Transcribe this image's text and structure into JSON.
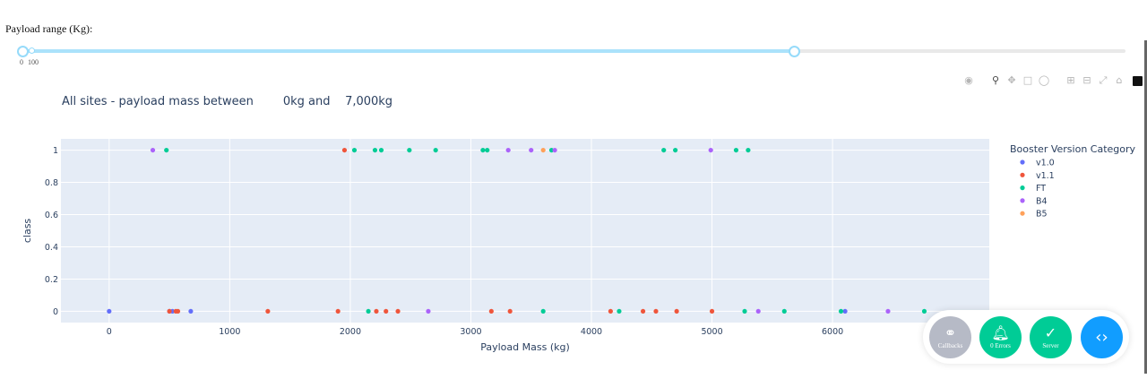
{
  "slider": {
    "label": "Payload range (Kg):",
    "marks": [
      "0",
      "100"
    ],
    "min": 0,
    "max": 10000,
    "value": [
      0,
      7000
    ]
  },
  "title": {
    "prefix": "All sites - payload mass between",
    "low": "0kg and",
    "high": "7,000kg"
  },
  "modebar": {
    "icons": [
      "camera-icon",
      "zoom-icon",
      "pan-icon",
      "box-select-icon",
      "lasso-icon",
      "zoom-in-icon",
      "zoom-out-icon",
      "autoscale-icon",
      "home-icon",
      "plotly-logo-icon"
    ]
  },
  "devtools": {
    "callbacks_label": "Callbacks",
    "errors_label": "0 Errors",
    "server_label": "Server"
  },
  "chart_data": {
    "type": "scatter",
    "title": "",
    "xlabel": "Payload Mass (kg)",
    "ylabel": "class",
    "xlim": [
      -400,
      7300
    ],
    "ylim": [
      -0.07,
      1.07
    ],
    "x_ticks": [
      0,
      1000,
      2000,
      3000,
      4000,
      5000,
      6000
    ],
    "y_ticks": [
      0,
      0.2,
      0.4,
      0.6,
      0.8,
      1
    ],
    "y_tick_labels": [
      "0",
      "0.2",
      "0.4",
      "0.6",
      "0.8",
      "1"
    ],
    "grid": true,
    "legend_title": "Booster Version Category",
    "legend_position": "right",
    "series": [
      {
        "name": "v1.0",
        "color": "#636efa",
        "x": [
          0,
          525,
          677,
          500,
          6104
        ],
        "y": [
          0,
          0,
          0,
          0,
          0
        ]
      },
      {
        "name": "v1.1",
        "color": "#ef553b",
        "x": [
          1952,
          500,
          553,
          570,
          1316,
          1898,
          2216,
          2296,
          2395,
          3170,
          3325,
          4159,
          4428,
          4535,
          4707,
          5000
        ],
        "y": [
          1,
          0,
          0,
          0,
          0,
          0,
          0,
          0,
          0,
          0,
          0,
          0,
          0,
          0,
          0,
          0
        ]
      },
      {
        "name": "FT",
        "color": "#00cc96",
        "x": [
          475,
          2034,
          2205,
          2257,
          2490,
          2708,
          3100,
          3136,
          3669,
          4600,
          4696,
          5200,
          5300,
          2150,
          3600,
          4230,
          5271,
          5600,
          6070,
          6761
        ],
        "y": [
          1,
          1,
          1,
          1,
          1,
          1,
          1,
          1,
          1,
          1,
          1,
          1,
          1,
          0,
          0,
          0,
          0,
          0,
          0,
          0
        ]
      },
      {
        "name": "B4",
        "color": "#ab63fa",
        "x": [
          362,
          3310,
          3500,
          3696,
          4990,
          2647,
          5384,
          6460
        ],
        "y": [
          1,
          1,
          1,
          1,
          1,
          0,
          0,
          0
        ]
      },
      {
        "name": "B5",
        "color": "#ffa15a",
        "x": [
          3600
        ],
        "y": [
          1
        ]
      }
    ]
  }
}
